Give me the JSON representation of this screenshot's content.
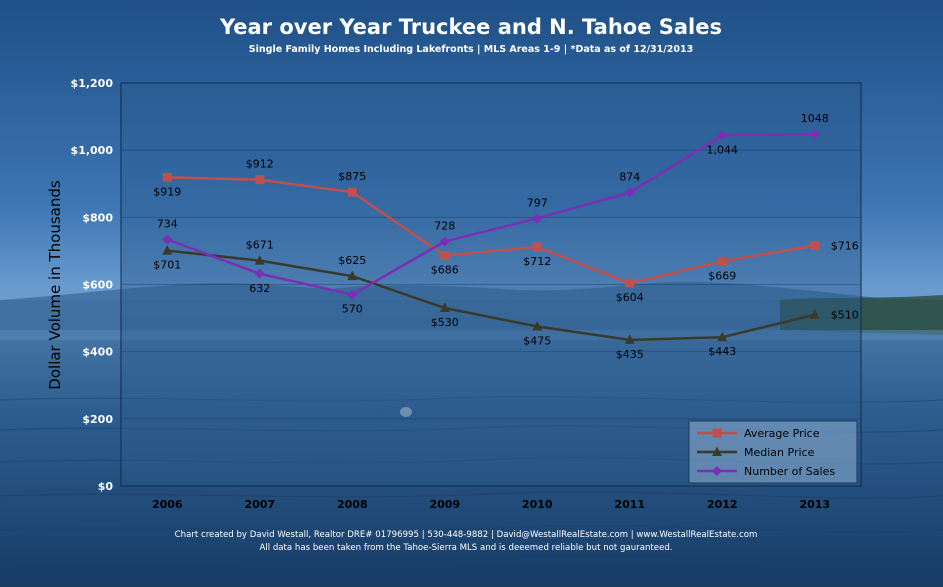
{
  "chart_data": {
    "type": "line",
    "title": "Year over Year Truckee and N. Tahoe Sales",
    "subtitle": "Single Family Homes Including Lakefronts | MLS Areas 1-9 | *Data as of 12/31/2013",
    "ylabel": "Dollar Volume in Thousands",
    "ylim": [
      0,
      1200
    ],
    "y_ticks": [
      "$0",
      "$200",
      "$400",
      "$600",
      "$800",
      "$1,000",
      "$1,200"
    ],
    "categories": [
      "2006",
      "2007",
      "2008",
      "2009",
      "2010",
      "2011",
      "2012",
      "2013"
    ],
    "grid": true,
    "legend_position": "bottom-right",
    "series": [
      {
        "name": "Average Price",
        "color": "#c0504d",
        "marker": "square",
        "values": [
          919,
          912,
          875,
          686,
          712,
          604,
          669,
          716
        ],
        "labels": [
          "$919",
          "$912",
          "$875",
          "$686",
          "$712",
          "$604",
          "$669",
          "$716"
        ]
      },
      {
        "name": "Median Price",
        "color": "#3a3a2a",
        "marker": "triangle",
        "values": [
          701,
          671,
          625,
          530,
          475,
          435,
          443,
          510
        ],
        "labels": [
          "$701",
          "$671",
          "$625",
          "$530",
          "$475",
          "$435",
          "$443",
          "$510"
        ]
      },
      {
        "name": "Number of Sales",
        "color": "#7a2fb5",
        "marker": "diamond",
        "values": [
          734,
          632,
          570,
          728,
          797,
          874,
          1044,
          1048
        ],
        "labels": [
          "734",
          "632",
          "570",
          "728",
          "797",
          "874",
          "1,044",
          "1048"
        ]
      }
    ],
    "footer_line1": "Chart created by David Westall, Realtor DRE# 01796995 | 530-448-9882 | David@WestallRealEstate.com | www.WestallRealEstate.com",
    "footer_line2": "All data has been taken from the Tahoe-Sierra MLS and is deeemed reliable but not gauranteed."
  }
}
